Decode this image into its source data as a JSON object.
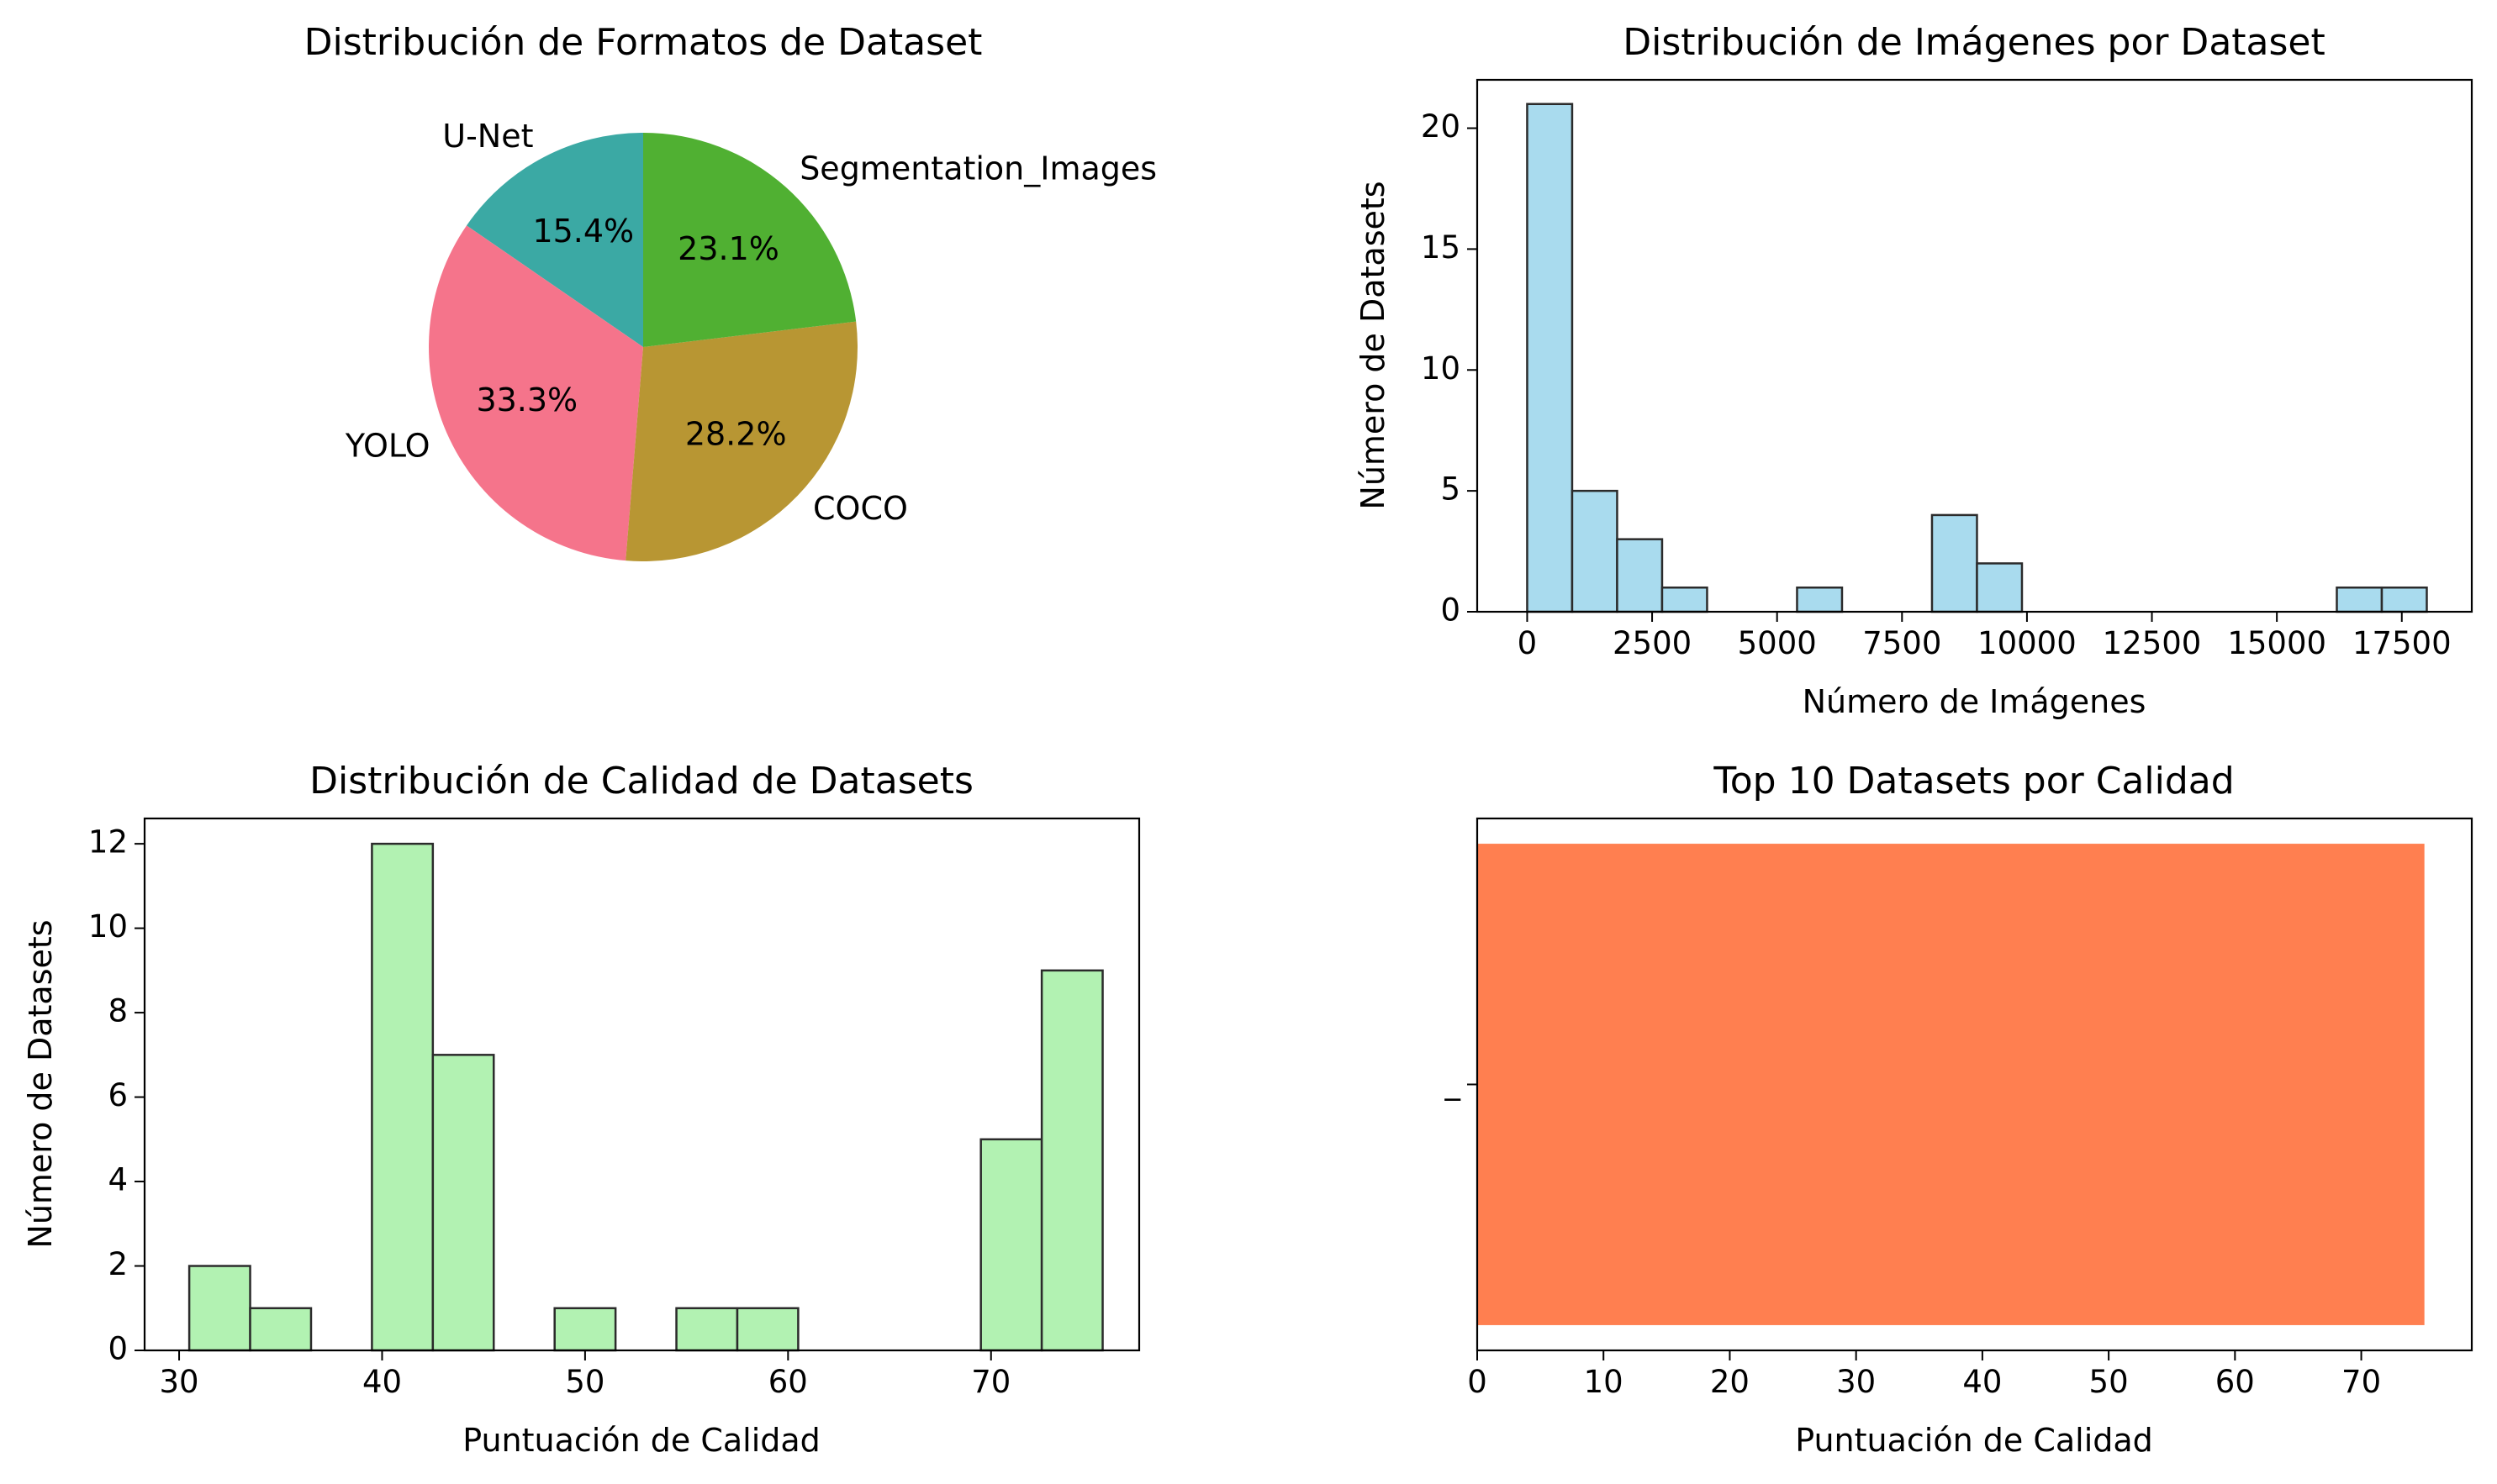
{
  "chart_data": [
    {
      "type": "pie",
      "title": "Distribución de Formatos de Dataset",
      "labels": [
        "U-Net",
        "YOLO",
        "COCO",
        "Segmentation_Images"
      ],
      "values": [
        15.4,
        33.3,
        28.2,
        23.1
      ],
      "value_labels": [
        "15.4%",
        "33.3%",
        "28.2%",
        "23.1%"
      ],
      "colors": [
        "#3ba9a4",
        "#f5748b",
        "#b89633",
        "#50b032"
      ]
    },
    {
      "type": "bar",
      "subtype": "histogram",
      "title": "Distribución de Imágenes por Dataset",
      "xlabel": "Número de Imágenes",
      "ylabel": "Número de Datasets",
      "bin_edges": [
        0,
        900,
        1800,
        2700,
        3600,
        4500,
        5400,
        6300,
        7200,
        8100,
        9000,
        9900,
        10800,
        11700,
        12600,
        13500,
        14400,
        15300,
        16200,
        17100,
        18000
      ],
      "values": [
        21,
        5,
        3,
        1,
        0,
        0,
        1,
        0,
        0,
        4,
        2,
        0,
        0,
        0,
        0,
        0,
        0,
        0,
        1,
        1
      ],
      "xlim": [
        -1000,
        18900
      ],
      "ylim": [
        0,
        22
      ],
      "xticks": [
        0,
        2500,
        5000,
        7500,
        10000,
        12500,
        15000,
        17500
      ],
      "xtick_labels": [
        "0",
        "2500",
        "5000",
        "7500",
        "10000",
        "12500",
        "15000",
        "17500"
      ],
      "yticks": [
        0,
        5,
        10,
        15,
        20
      ],
      "ytick_labels": [
        "0",
        "5",
        "10",
        "15",
        "20"
      ],
      "color": "#a9dbee"
    },
    {
      "type": "bar",
      "subtype": "histogram",
      "title": "Distribución de Calidad de Datasets",
      "xlabel": "Puntuación de Calidad",
      "ylabel": "Número de Datasets",
      "bin_edges": [
        30.5,
        33.5,
        36.5,
        39.5,
        42.5,
        45.5,
        48.5,
        51.5,
        54.5,
        57.5,
        60.5,
        63.5,
        66.5,
        69.5,
        72.5,
        75.5
      ],
      "values": [
        2,
        1,
        0,
        12,
        7,
        0,
        1,
        0,
        1,
        1,
        0,
        0,
        0,
        5,
        9
      ],
      "xlim": [
        28.3,
        77.3
      ],
      "ylim": [
        0,
        12.6
      ],
      "xticks": [
        30,
        40,
        50,
        60,
        70
      ],
      "xtick_labels": [
        "30",
        "40",
        "50",
        "60",
        "70"
      ],
      "yticks": [
        0,
        2,
        4,
        6,
        8,
        10,
        12
      ],
      "ytick_labels": [
        "0",
        "2",
        "4",
        "6",
        "8",
        "10",
        "12"
      ],
      "color": "#b2f2b2"
    },
    {
      "type": "bar",
      "orientation": "horizontal",
      "title": "Top 10 Datasets por Calidad",
      "xlabel": "Puntuación de Calidad",
      "categories": [
        "_"
      ],
      "values": [
        75
      ],
      "xlim": [
        0,
        78.75
      ],
      "xticks": [
        0,
        10,
        20,
        30,
        40,
        50,
        60,
        70
      ],
      "xtick_labels": [
        "0",
        "10",
        "20",
        "30",
        "40",
        "50",
        "60",
        "70"
      ],
      "color": "#ff7f50"
    }
  ]
}
